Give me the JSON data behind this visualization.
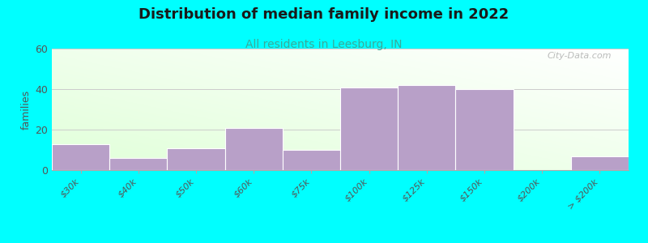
{
  "title": "Distribution of median family income in 2022",
  "subtitle": "All residents in Leesburg, IN",
  "ylabel": "families",
  "background_color": "#00FFFF",
  "bar_color": "#b8a0c8",
  "bar_edge_color": "#ffffff",
  "categories": [
    "$30k",
    "$40k",
    "$50k",
    "$60k",
    "$75k",
    "$100k",
    "$125k",
    "$150k",
    "$200k",
    "> $200k"
  ],
  "values": [
    13,
    6,
    11,
    21,
    10,
    41,
    42,
    40,
    0,
    7
  ],
  "ylim": [
    0,
    60
  ],
  "yticks": [
    0,
    20,
    40,
    60
  ],
  "title_fontsize": 13,
  "subtitle_fontsize": 10,
  "subtitle_color": "#3aaa9a",
  "watermark": "City-Data.com",
  "grid_color": "#cccccc",
  "bg_color_top": "#ffffff",
  "bg_color_bottom": "#d0eed8"
}
